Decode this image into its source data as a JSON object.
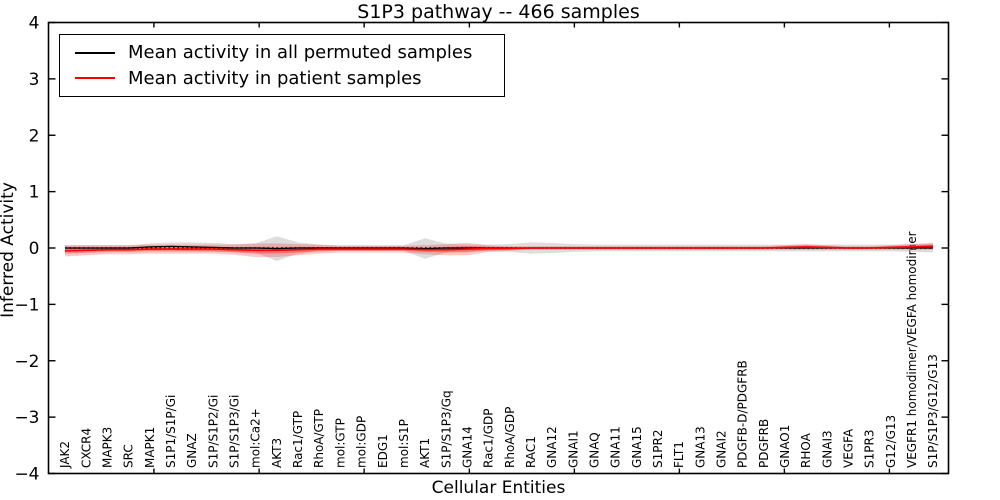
{
  "chart_data": {
    "type": "line",
    "title": "S1P3 pathway -- 466 samples",
    "xlabel": "Cellular Entities",
    "ylabel": "Inferred Activity",
    "ylim": [
      -4,
      4
    ],
    "yticks": [
      -4,
      -3,
      -2,
      -1,
      0,
      1,
      2,
      3,
      4
    ],
    "grid": false,
    "legend_position": "upper left",
    "zero_reference_line": true,
    "categories": [
      "JAK2",
      "CXCR4",
      "MAPK3",
      "SRC",
      "MAPK1",
      "S1P1/S1P/Gi",
      "GNAZ",
      "S1P/S1P2/Gi",
      "S1P/S1P3/Gi",
      "mol:Ca2+",
      "AKT3",
      "Rac1/GTP",
      "RhoA/GTP",
      "mol:GTP",
      "mol:GDP",
      "EDG1",
      "mol:S1P",
      "AKT1",
      "S1P/S1P3/Gq",
      "GNA14",
      "Rac1/GDP",
      "RhoA/GDP",
      "RAC1",
      "GNA12",
      "GNAI1",
      "GNAQ",
      "GNA11",
      "GNA15",
      "S1PR2",
      "FLT1",
      "GNA13",
      "GNAI2",
      "PDGFB-D/PDGFRB",
      "PDGFRB",
      "GNAO1",
      "RHOA",
      "GNAI3",
      "VEGFA",
      "S1PR3",
      "G12/G13",
      "VEGFR1 homodimer/VEGFA homodimer",
      "S1P/S1P3/G12/G13"
    ],
    "series": [
      {
        "name": "Mean activity in all permuted samples",
        "color": "#000000",
        "band_color": "#bbbbbb",
        "band_opacity": 0.5,
        "values": [
          0,
          0,
          0,
          0,
          0.02,
          0.03,
          0.02,
          0.01,
          0,
          0,
          -0.01,
          0,
          0,
          0,
          0,
          0,
          0,
          -0.01,
          0,
          0,
          0,
          0,
          0,
          0,
          0,
          0,
          0,
          0,
          0,
          0,
          0,
          0,
          0,
          0,
          0,
          0,
          0,
          0,
          0,
          0,
          0,
          0
        ],
        "band": [
          0.05,
          0.05,
          0.05,
          0.05,
          0.06,
          0.07,
          0.08,
          0.08,
          0.07,
          0.08,
          0.22,
          0.1,
          0.06,
          0.05,
          0.05,
          0.05,
          0.05,
          0.18,
          0.08,
          0.06,
          0.06,
          0.07,
          0.1,
          0.09,
          0.07,
          0.06,
          0.06,
          0.06,
          0.06,
          0.06,
          0.06,
          0.06,
          0.06,
          0.06,
          0.06,
          0.06,
          0.06,
          0.06,
          0.06,
          0.06,
          0.07,
          0.08
        ]
      },
      {
        "name": "Mean activity in patient samples",
        "color": "#ff0000",
        "band_color": "#ff0000",
        "band_opacity": 0.22,
        "band_inner_opacity": 0.3,
        "values": [
          -0.05,
          -0.04,
          -0.03,
          -0.03,
          -0.02,
          -0.02,
          -0.02,
          -0.02,
          -0.03,
          -0.04,
          -0.04,
          -0.03,
          -0.02,
          -0.02,
          -0.02,
          -0.02,
          -0.02,
          -0.03,
          -0.03,
          -0.02,
          -0.01,
          -0.01,
          0,
          0,
          0,
          0,
          0,
          0,
          0,
          0,
          0,
          0,
          0,
          0,
          0.01,
          0.02,
          0.01,
          0,
          0,
          0.01,
          0.02,
          0.03
        ],
        "band": [
          0.1,
          0.09,
          0.08,
          0.08,
          0.08,
          0.08,
          0.08,
          0.08,
          0.09,
          0.12,
          0.12,
          0.1,
          0.08,
          0.06,
          0.06,
          0.06,
          0.06,
          0.08,
          0.1,
          0.11,
          0.06,
          0.04,
          0.03,
          0.03,
          0.03,
          0.03,
          0.03,
          0.03,
          0.03,
          0.03,
          0.03,
          0.03,
          0.03,
          0.03,
          0.04,
          0.05,
          0.04,
          0.03,
          0.03,
          0.04,
          0.05,
          0.06
        ]
      }
    ],
    "layout": {
      "xticks_index": [
        4.2,
        9.17,
        14.13,
        19.1,
        24.06,
        29.02,
        33.98,
        38.94
      ],
      "tick_direction": "in"
    }
  }
}
